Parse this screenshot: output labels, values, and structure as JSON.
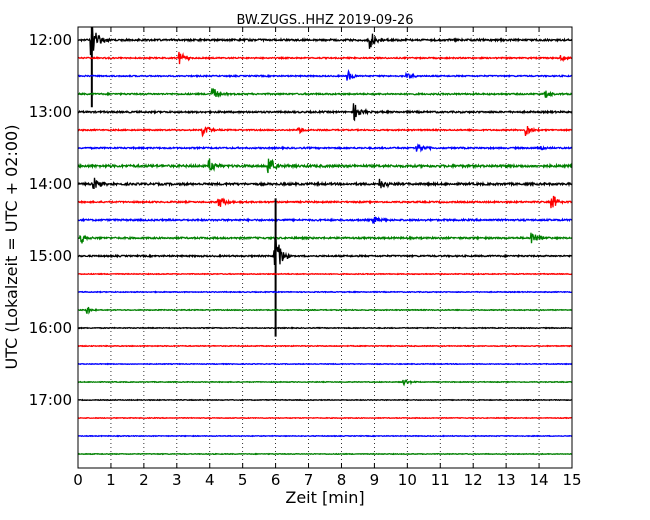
{
  "chart_data": {
    "type": "line",
    "title": "BW.ZUGS..HHZ 2019-09-26",
    "xlabel": "Zeit  [min]",
    "ylabel": "UTC (Lokalzeit = UTC + 02:00)",
    "xlim": [
      0,
      15
    ],
    "x_ticks": [
      0,
      1,
      2,
      3,
      4,
      5,
      6,
      7,
      8,
      9,
      10,
      11,
      12,
      13,
      14,
      15
    ],
    "y_tick_labels": [
      "12:00",
      "13:00",
      "14:00",
      "15:00",
      "16:00",
      "17:00"
    ],
    "grid": "vertical-dotted",
    "trace_interval_minutes": 15,
    "start_time": "12:00",
    "colors": [
      "#000000",
      "#ff0000",
      "#0000ff",
      "#008000"
    ],
    "series": [
      {
        "start": "12:00",
        "color": "#000000",
        "noise": 0.9,
        "events": [
          {
            "t": 0.42,
            "amp": 3.0
          },
          {
            "t": 8.9,
            "amp": 1.6
          }
        ]
      },
      {
        "start": "12:15",
        "color": "#ff0000",
        "noise": 0.6,
        "events": [
          {
            "t": 3.1,
            "amp": 1.0
          },
          {
            "t": 14.7,
            "amp": 0.6
          }
        ]
      },
      {
        "start": "12:30",
        "color": "#0000ff",
        "noise": 0.6,
        "events": [
          {
            "t": 8.2,
            "amp": 0.9
          },
          {
            "t": 10.0,
            "amp": 0.5
          }
        ]
      },
      {
        "start": "12:45",
        "color": "#008000",
        "noise": 0.7,
        "events": [
          {
            "t": 4.1,
            "amp": 1.1
          },
          {
            "t": 14.2,
            "amp": 0.6
          }
        ]
      },
      {
        "start": "13:00",
        "color": "#000000",
        "noise": 0.8,
        "events": [
          {
            "t": 8.4,
            "amp": 1.4
          }
        ]
      },
      {
        "start": "13:15",
        "color": "#ff0000",
        "noise": 0.6,
        "events": [
          {
            "t": 3.8,
            "amp": 1.0
          },
          {
            "t": 6.7,
            "amp": 0.6
          },
          {
            "t": 13.6,
            "amp": 1.1
          }
        ]
      },
      {
        "start": "13:30",
        "color": "#0000ff",
        "noise": 0.7,
        "events": [
          {
            "t": 10.3,
            "amp": 1.0
          },
          {
            "t": 14.0,
            "amp": 0.5
          }
        ]
      },
      {
        "start": "13:45",
        "color": "#008000",
        "noise": 1.1,
        "events": [
          {
            "t": 4.0,
            "amp": 1.2
          },
          {
            "t": 5.8,
            "amp": 1.6
          }
        ]
      },
      {
        "start": "14:00",
        "color": "#000000",
        "noise": 1.0,
        "events": [
          {
            "t": 0.5,
            "amp": 1.1
          },
          {
            "t": 9.2,
            "amp": 1.2
          }
        ]
      },
      {
        "start": "14:15",
        "color": "#ff0000",
        "noise": 0.7,
        "events": [
          {
            "t": 4.3,
            "amp": 1.0
          },
          {
            "t": 14.4,
            "amp": 1.4
          }
        ]
      },
      {
        "start": "14:30",
        "color": "#0000ff",
        "noise": 0.8,
        "events": [
          {
            "t": 9.0,
            "amp": 0.6
          }
        ]
      },
      {
        "start": "14:45",
        "color": "#008000",
        "noise": 0.8,
        "events": [
          {
            "t": 0.1,
            "amp": 1.0
          },
          {
            "t": 13.8,
            "amp": 1.2
          }
        ]
      },
      {
        "start": "15:00",
        "color": "#000000",
        "noise": 0.7,
        "events": [
          {
            "t": 6.0,
            "amp": 3.6
          }
        ]
      },
      {
        "start": "15:15",
        "color": "#ff0000",
        "noise": 0.4,
        "events": []
      },
      {
        "start": "15:30",
        "color": "#0000ff",
        "noise": 0.4,
        "events": []
      },
      {
        "start": "15:45",
        "color": "#008000",
        "noise": 0.4,
        "events": [
          {
            "t": 0.3,
            "amp": 0.6
          }
        ]
      },
      {
        "start": "16:00",
        "color": "#000000",
        "noise": 0.4,
        "events": []
      },
      {
        "start": "16:15",
        "color": "#ff0000",
        "noise": 0.4,
        "events": []
      },
      {
        "start": "16:30",
        "color": "#0000ff",
        "noise": 0.35,
        "events": []
      },
      {
        "start": "16:45",
        "color": "#008000",
        "noise": 0.35,
        "events": [
          {
            "t": 9.9,
            "amp": 0.6
          }
        ]
      },
      {
        "start": "17:00",
        "color": "#000000",
        "noise": 0.35,
        "events": []
      },
      {
        "start": "17:15",
        "color": "#ff0000",
        "noise": 0.35,
        "events": []
      },
      {
        "start": "17:30",
        "color": "#0000ff",
        "noise": 0.35,
        "events": []
      },
      {
        "start": "17:45",
        "color": "#008000",
        "noise": 0.35,
        "events": []
      }
    ]
  }
}
